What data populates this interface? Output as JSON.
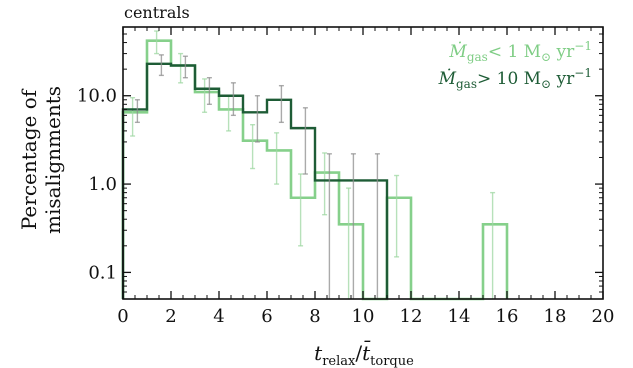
{
  "chart_data": {
    "type": "histogram-step",
    "title": "centrals",
    "xlabel": "t_relax / t̄_torque",
    "ylabel_line1": "Percentage of",
    "ylabel_line2": "misalignments",
    "xlim": [
      0,
      20
    ],
    "ylim": [
      0.05,
      60
    ],
    "yscale": "log",
    "x_ticks": [
      0,
      2,
      4,
      6,
      8,
      10,
      12,
      14,
      16,
      18,
      20
    ],
    "x_tick_labels": [
      "0",
      "2",
      "4",
      "6",
      "8",
      "10",
      "12",
      "14",
      "16",
      "18",
      "20"
    ],
    "y_ticks": [
      0.1,
      1,
      10
    ],
    "y_tick_labels": [
      "0.1",
      "1.0",
      "10.0"
    ],
    "legend_position": "top-right",
    "series": [
      {
        "name": "Ṁ_gas < 1 M⊙ yr⁻¹",
        "color": "#7fcd85",
        "bin_edges": [
          0,
          1,
          2,
          3,
          4,
          5,
          6,
          7,
          8,
          9,
          10,
          11,
          12,
          13,
          14,
          15,
          16
        ],
        "values": [
          6.5,
          42,
          22,
          11,
          7,
          3.1,
          2.4,
          0.7,
          1.35,
          0.35,
          0,
          0.7,
          0,
          0,
          0,
          0.35
        ],
        "errors_low": [
          3,
          12,
          8,
          4.5,
          3,
          1.6,
          1.4,
          0.5,
          0.9,
          0.35,
          0,
          0.55,
          0,
          0,
          0,
          0.3
        ],
        "errors_high": [
          3,
          12,
          8,
          4.5,
          3,
          1.6,
          1.4,
          0.6,
          0.9,
          0.55,
          0,
          0.55,
          0,
          0,
          0,
          0.45
        ]
      },
      {
        "name": "Ṁ_gas > 10 M⊙ yr⁻¹",
        "color": "#1e5c36",
        "bin_edges": [
          0,
          1,
          2,
          3,
          4,
          5,
          6,
          7,
          8,
          9,
          10,
          11
        ],
        "values": [
          7,
          23,
          22,
          12,
          10,
          6.5,
          9,
          4.3,
          1.1,
          1.1,
          1.1
        ],
        "errors_low": [
          2,
          6,
          6,
          4,
          4,
          3.5,
          4,
          3,
          1.1,
          1.1,
          1.1
        ],
        "errors_high": [
          2,
          6,
          6,
          4,
          4,
          3.5,
          4,
          3,
          1.1,
          1.1,
          1.1
        ]
      }
    ]
  }
}
